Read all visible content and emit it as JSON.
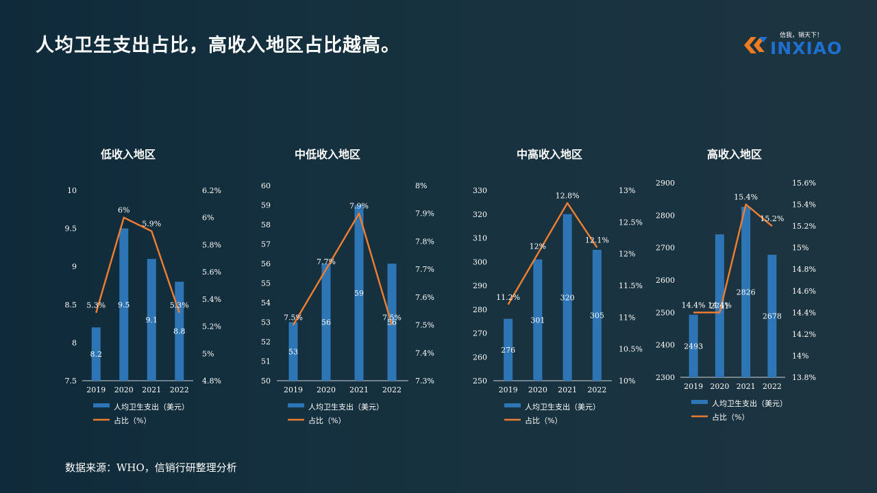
{
  "page": {
    "title": "人均卫生支出占比，高收入地区占比越高。",
    "source": "数据来源：WHO，信销行研整理分析",
    "logo": {
      "tagline": "信我，销天下！",
      "wordmark": "INXIAO"
    }
  },
  "colors": {
    "bar": "#2e75b6",
    "line": "#ed7d31",
    "text": "#ffffff"
  },
  "chart_data": [
    {
      "type": "bar+line",
      "title": "低收入地区",
      "categories": [
        "2019",
        "2020",
        "2021",
        "2022"
      ],
      "series": [
        {
          "name": "人均卫生支出（美元）",
          "kind": "bar",
          "axis": "left",
          "values": [
            8.2,
            9.5,
            9.1,
            8.8
          ],
          "labels": [
            "8.2",
            "9.5",
            "9.1",
            "8.8"
          ]
        },
        {
          "name": "占比（%）",
          "kind": "line",
          "axis": "right",
          "values": [
            5.3,
            6.0,
            5.9,
            5.3
          ],
          "labels": [
            "5.3%",
            "6%",
            "5.9%",
            "5.3%"
          ]
        }
      ],
      "left_axis": {
        "ticks": [
          "7.5",
          "8",
          "8.5",
          "9",
          "9.5",
          "10"
        ],
        "range": [
          7.5,
          10
        ]
      },
      "right_axis": {
        "ticks": [
          "4.8%",
          "5%",
          "5.2%",
          "5.4%",
          "5.6%",
          "5.8%",
          "6%",
          "6.2%"
        ],
        "range": [
          4.8,
          6.2
        ]
      },
      "legend": "bottom"
    },
    {
      "type": "bar+line",
      "title": "中低收入地区",
      "categories": [
        "2019",
        "2020",
        "2021",
        "2022"
      ],
      "series": [
        {
          "name": "人均卫生支出（美元）",
          "kind": "bar",
          "axis": "left",
          "values": [
            53,
            56,
            59,
            56
          ],
          "labels": [
            "53",
            "56",
            "59",
            "56"
          ]
        },
        {
          "name": "占比（%）",
          "kind": "line",
          "axis": "right",
          "values": [
            7.5,
            7.7,
            7.9,
            7.5
          ],
          "labels": [
            "7.5%",
            "7.7%",
            "7.9%",
            "7.5%"
          ]
        }
      ],
      "left_axis": {
        "ticks": [
          "50",
          "51",
          "52",
          "53",
          "54",
          "55",
          "56",
          "57",
          "58",
          "59",
          "60"
        ],
        "range": [
          50,
          60
        ]
      },
      "right_axis": {
        "ticks": [
          "7.3%",
          "7.4%",
          "7.5%",
          "7.6%",
          "7.7%",
          "7.8%",
          "7.9%",
          "8%"
        ],
        "range": [
          7.3,
          8.0
        ]
      },
      "legend": "bottom"
    },
    {
      "type": "bar+line",
      "title": "中高收入地区",
      "categories": [
        "2019",
        "2020",
        "2021",
        "2022"
      ],
      "series": [
        {
          "name": "人均卫生支出（美元）",
          "kind": "bar",
          "axis": "left",
          "values": [
            276,
            301,
            320,
            305
          ],
          "labels": [
            "276",
            "301",
            "320",
            "305"
          ]
        },
        {
          "name": "占比（%）",
          "kind": "line",
          "axis": "right",
          "values": [
            11.2,
            12.0,
            12.8,
            12.1
          ],
          "labels": [
            "11.2%",
            "12%",
            "12.8%",
            "12.1%"
          ]
        }
      ],
      "left_axis": {
        "ticks": [
          "250",
          "260",
          "270",
          "280",
          "290",
          "300",
          "310",
          "320",
          "330"
        ],
        "range": [
          250,
          330
        ]
      },
      "right_axis": {
        "ticks": [
          "10%",
          "10.5%",
          "11%",
          "11.5%",
          "12%",
          "12.5%",
          "13%"
        ],
        "range": [
          10,
          13
        ]
      },
      "legend": "bottom"
    },
    {
      "type": "bar+line",
      "title": "高收入地区",
      "categories": [
        "2019",
        "2020",
        "2021",
        "2022"
      ],
      "series": [
        {
          "name": "人均卫生支出（美元）",
          "kind": "bar",
          "axis": "left",
          "values": [
            2493,
            2741,
            2826,
            2678
          ],
          "labels": [
            "2493",
            "2741",
            "2826",
            "2678"
          ]
        },
        {
          "name": "占比（%）",
          "kind": "line",
          "axis": "right",
          "values": [
            14.4,
            14.4,
            15.4,
            15.2
          ],
          "labels": [
            "14.4%",
            "14.4%",
            "15.4%",
            "15.2%"
          ]
        }
      ],
      "left_axis": {
        "ticks": [
          "2300",
          "2400",
          "2500",
          "2600",
          "2700",
          "2800",
          "2900"
        ],
        "range": [
          2300,
          2900
        ]
      },
      "right_axis": {
        "ticks": [
          "13.8%",
          "14%",
          "14.2%",
          "14.4%",
          "14.6%",
          "14.8%",
          "15%",
          "15.2%",
          "15.4%",
          "15.6%"
        ],
        "range": [
          13.8,
          15.6
        ]
      },
      "legend": "bottom"
    }
  ]
}
